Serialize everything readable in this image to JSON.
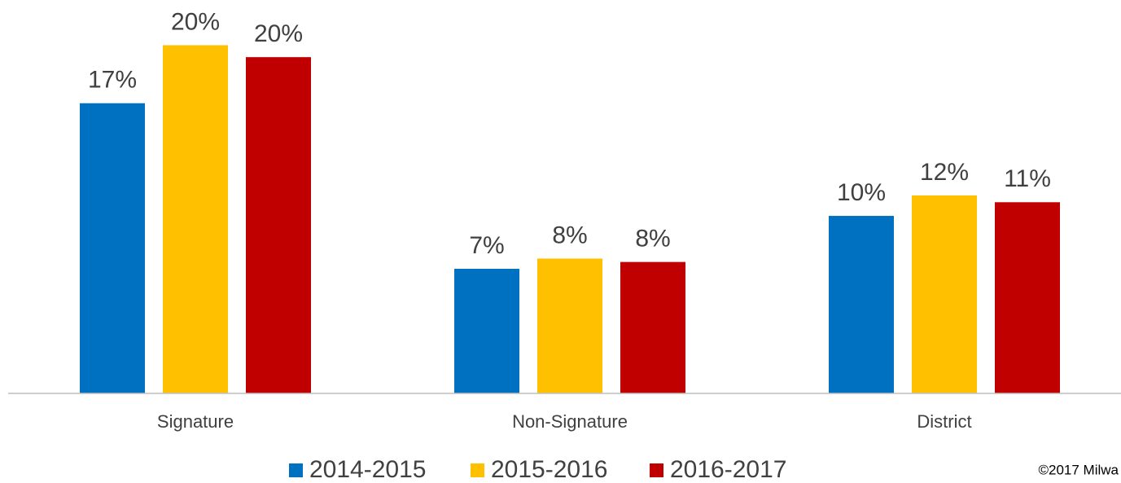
{
  "chart_data": {
    "type": "bar",
    "categories": [
      "Signature",
      "Non-Signature",
      "District"
    ],
    "series": [
      {
        "name": "2014-2015",
        "color": "#0070c0",
        "values": [
          17.0,
          7.3,
          10.4
        ],
        "value_labels": [
          "17%",
          "7%",
          "10%"
        ]
      },
      {
        "name": "2015-2016",
        "color": "#ffc000",
        "values": [
          20.4,
          7.9,
          11.6
        ],
        "value_labels": [
          "20%",
          "8%",
          "12%"
        ]
      },
      {
        "name": "2016-2017",
        "color": "#c00000",
        "values": [
          19.7,
          7.7,
          11.2
        ],
        "value_labels": [
          "20%",
          "8%",
          "11%"
        ]
      }
    ],
    "ylim": [
      0,
      23
    ],
    "grid": false,
    "legend": "bottom",
    "footnote": "©2017 Milwa"
  }
}
